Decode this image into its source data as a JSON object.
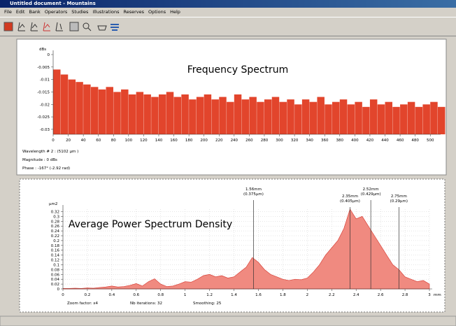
{
  "window": {
    "title": "Untitled document - Mountains",
    "menu": [
      "File",
      "Edit",
      "Bank",
      "Operators",
      "Studies",
      "Illustrations",
      "Reserves",
      "Options",
      "Help"
    ]
  },
  "chart_data": [
    {
      "type": "bar",
      "title": "Frequency Spectrum",
      "y_label": "dBs",
      "color": "#e2452c",
      "x": [
        0,
        10,
        20,
        30,
        40,
        50,
        60,
        70,
        80,
        90,
        100,
        110,
        120,
        130,
        140,
        150,
        160,
        170,
        180,
        190,
        200,
        210,
        220,
        230,
        240,
        250,
        260,
        270,
        280,
        290,
        300,
        310,
        320,
        330,
        340,
        350,
        360,
        370,
        380,
        390,
        400,
        410,
        420,
        430,
        440,
        450,
        460,
        470,
        480,
        490,
        500,
        510
      ],
      "values": [
        -0.006,
        -0.008,
        -0.01,
        -0.011,
        -0.012,
        -0.013,
        -0.014,
        -0.013,
        -0.015,
        -0.014,
        -0.016,
        -0.015,
        -0.016,
        -0.017,
        -0.016,
        -0.015,
        -0.017,
        -0.016,
        -0.018,
        -0.017,
        -0.016,
        -0.018,
        -0.017,
        -0.019,
        -0.016,
        -0.018,
        -0.017,
        -0.019,
        -0.018,
        -0.017,
        -0.019,
        -0.018,
        -0.02,
        -0.018,
        -0.019,
        -0.017,
        -0.02,
        -0.019,
        -0.018,
        -0.02,
        -0.019,
        -0.021,
        -0.018,
        -0.02,
        -0.019,
        -0.021,
        -0.02,
        -0.019,
        -0.021,
        -0.02,
        -0.019,
        -0.021
      ],
      "xlim": [
        0,
        510
      ],
      "xticks": [
        0,
        20,
        40,
        60,
        80,
        100,
        120,
        140,
        160,
        180,
        200,
        220,
        240,
        260,
        280,
        300,
        320,
        340,
        360,
        380,
        400,
        420,
        440,
        460,
        480,
        500
      ],
      "ylim": [
        -0.032,
        0
      ],
      "yticks": [
        0,
        -0.005,
        -0.01,
        -0.015,
        -0.02,
        -0.025,
        -0.03
      ],
      "info": [
        "Wavelength # 2 : (5102 µm )",
        "Magnitude : 0 dBs",
        "Phase : -167° (-2.92 rad)"
      ]
    },
    {
      "type": "area",
      "title": "Average Power Spectrum Density",
      "y_label": "µm2",
      "x_label": "mm",
      "color": "#f08a80",
      "line_color": "#d9453c",
      "x": [
        0,
        0.05,
        0.1,
        0.15,
        0.2,
        0.25,
        0.3,
        0.35,
        0.4,
        0.45,
        0.5,
        0.55,
        0.6,
        0.65,
        0.7,
        0.75,
        0.8,
        0.85,
        0.9,
        0.95,
        1,
        1.05,
        1.1,
        1.15,
        1.2,
        1.25,
        1.3,
        1.35,
        1.4,
        1.45,
        1.5,
        1.55,
        1.6,
        1.65,
        1.7,
        1.75,
        1.8,
        1.85,
        1.9,
        1.95,
        2,
        2.05,
        2.1,
        2.15,
        2.2,
        2.25,
        2.3,
        2.35,
        2.4,
        2.45,
        2.5,
        2.55,
        2.6,
        2.65,
        2.7,
        2.75,
        2.8,
        2.85,
        2.9,
        2.95,
        3
      ],
      "values": [
        0.002,
        0.002,
        0.003,
        0.002,
        0.004,
        0.003,
        0.006,
        0.008,
        0.012,
        0.008,
        0.01,
        0.015,
        0.022,
        0.012,
        0.03,
        0.042,
        0.02,
        0.01,
        0.012,
        0.02,
        0.03,
        0.028,
        0.04,
        0.055,
        0.06,
        0.05,
        0.055,
        0.045,
        0.05,
        0.07,
        0.09,
        0.13,
        0.11,
        0.08,
        0.06,
        0.05,
        0.04,
        0.035,
        0.04,
        0.038,
        0.045,
        0.07,
        0.1,
        0.14,
        0.17,
        0.2,
        0.25,
        0.33,
        0.29,
        0.3,
        0.26,
        0.22,
        0.18,
        0.14,
        0.1,
        0.08,
        0.05,
        0.04,
        0.03,
        0.035,
        0.02
      ],
      "xlim": [
        0,
        3
      ],
      "xticks": [
        0,
        0.2,
        0.4,
        0.6,
        0.8,
        1,
        1.2,
        1.4,
        1.6,
        1.8,
        2,
        2.2,
        2.4,
        2.6,
        2.8,
        3
      ],
      "ylim": [
        0,
        0.33
      ],
      "yticks": [
        0,
        0.02,
        0.04,
        0.06,
        0.08,
        0.1,
        0.12,
        0.14,
        0.16,
        0.18,
        0.2,
        0.22,
        0.24,
        0.26,
        0.28,
        0.3,
        0.32
      ],
      "annotations": [
        {
          "x": 1.56,
          "label": "1.56mm",
          "sublabel": "(0.375µm)"
        },
        {
          "x": 2.35,
          "label": "2.35mm",
          "sublabel": "(0.405µm)"
        },
        {
          "x": 2.52,
          "label": "2.52mm",
          "sublabel": "(0.429µm)"
        },
        {
          "x": 2.75,
          "label": "2.75mm",
          "sublabel": "(0.29µm)"
        }
      ],
      "footer": [
        "Zoom factor: x4",
        "Nb iterations: 32",
        "Smoothing: 25"
      ]
    }
  ]
}
